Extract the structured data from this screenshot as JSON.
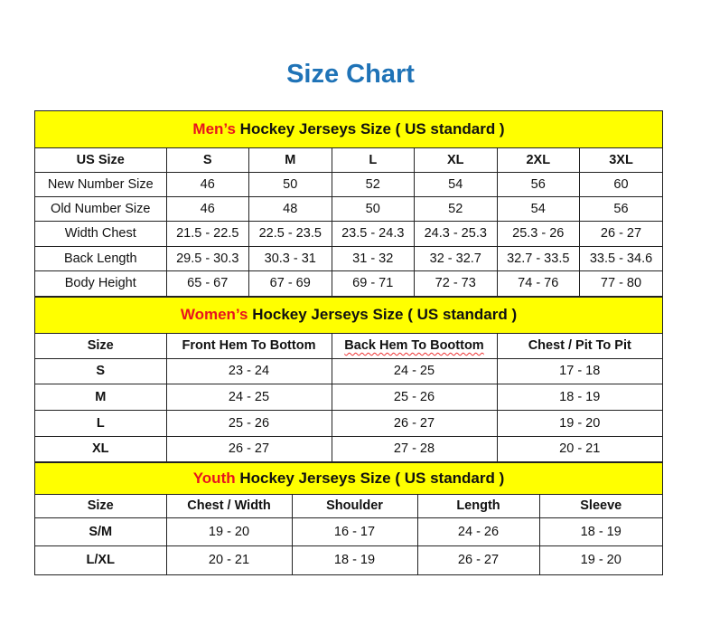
{
  "title": "Size Chart",
  "men": {
    "banner_highlight": "Men’s",
    "banner_rest": " Hockey Jerseys Size ( US standard )",
    "headers": [
      "US Size",
      "S",
      "M",
      "L",
      "XL",
      "2XL",
      "3XL"
    ],
    "rows": [
      [
        "New Number Size",
        "46",
        "50",
        "52",
        "54",
        "56",
        "60"
      ],
      [
        "Old Number Size",
        "46",
        "48",
        "50",
        "52",
        "54",
        "56"
      ],
      [
        "Width Chest",
        "21.5 - 22.5",
        "22.5 - 23.5",
        "23.5 - 24.3",
        "24.3 - 25.3",
        "25.3 - 26",
        "26 - 27"
      ],
      [
        "Back Length",
        "29.5 - 30.3",
        "30.3 - 31",
        "31 - 32",
        "32 - 32.7",
        "32.7 - 33.5",
        "33.5 - 34.6"
      ],
      [
        "Body Height",
        "65 - 67",
        "67 - 69",
        "69 - 71",
        "72 - 73",
        "74 - 76",
        "77 - 80"
      ]
    ]
  },
  "women": {
    "banner_highlight": "Women’s",
    "banner_rest": " Hockey Jerseys Size ( US standard )",
    "headers": [
      "Size",
      "Front Hem To Bottom",
      "Back Hem To Boottom",
      "Chest / Pit To Pit"
    ],
    "rows": [
      [
        "S",
        "23 - 24",
        "24 - 25",
        "17 - 18"
      ],
      [
        "M",
        "24 - 25",
        "25 - 26",
        "18 - 19"
      ],
      [
        "L",
        "25 - 26",
        "26 - 27",
        "19 - 20"
      ],
      [
        "XL",
        "26 - 27",
        "27 - 28",
        "20 - 21"
      ]
    ]
  },
  "youth": {
    "banner_highlight": "Youth",
    "banner_rest": " Hockey Jerseys Size ( US standard )",
    "headers": [
      "Size",
      "Chest / Width",
      "Shoulder",
      "Length",
      "Sleeve"
    ],
    "rows": [
      [
        "S/M",
        "19 - 20",
        "16 - 17",
        "24 - 26",
        "18 - 19"
      ],
      [
        "L/XL",
        "20 - 21",
        "18 - 19",
        "26 - 27",
        "19 - 20"
      ]
    ]
  },
  "colors": {
    "title": "#1f73b7",
    "banner": "#ffff00",
    "highlight": "#e8141e"
  }
}
